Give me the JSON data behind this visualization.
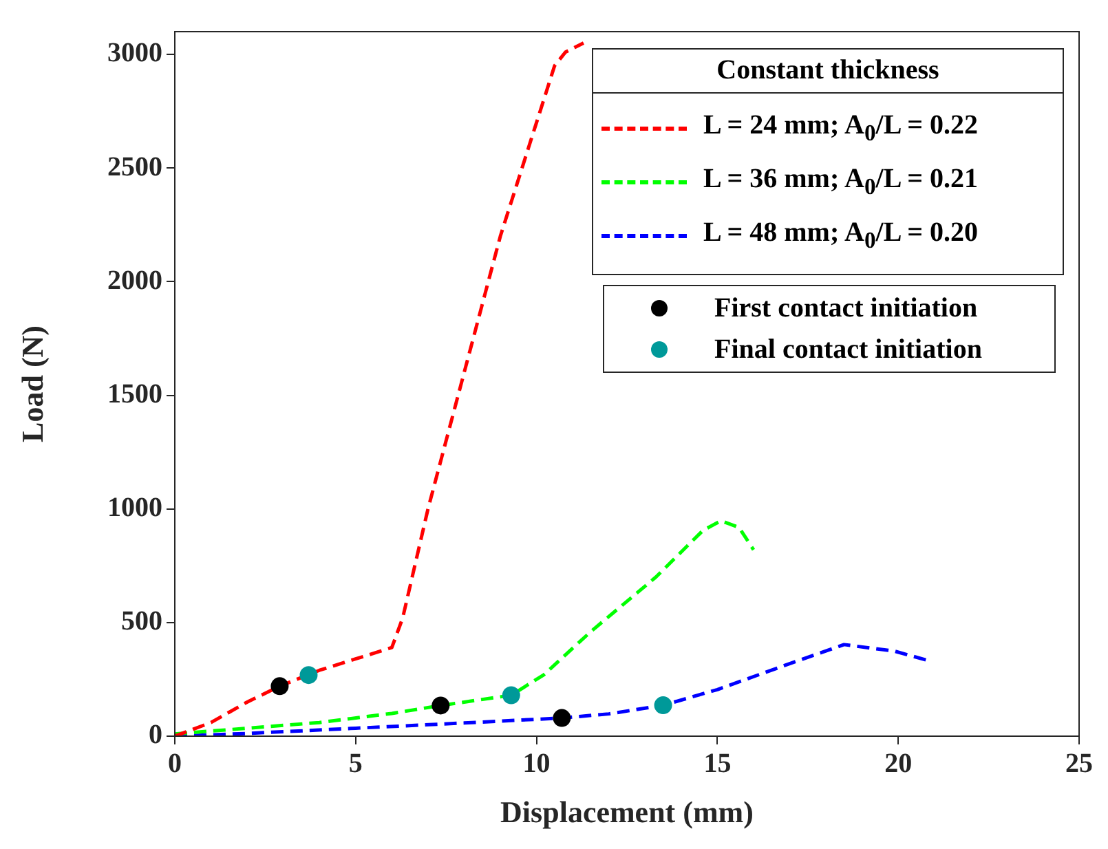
{
  "chart_data": {
    "type": "line",
    "xlabel": "Displacement (mm)",
    "ylabel": "Load (N)",
    "legend_title": "Constant thickness",
    "legend": "top right",
    "grid": false,
    "line_style": "dashed",
    "xlim": [
      0,
      25
    ],
    "xticks": [
      0,
      5,
      10,
      15,
      20,
      25
    ],
    "ylim": [
      0,
      3100
    ],
    "yticks": [
      0,
      500,
      1000,
      1500,
      2000,
      2500,
      3000
    ],
    "series": [
      {
        "name": "L = 24 mm; A$_{0}$/L = 0.22",
        "color": "#ff0000",
        "x": [
          0,
          1,
          2,
          2.9,
          4,
          5,
          6,
          6.3,
          7,
          8,
          9,
          10,
          10.5,
          10.8,
          11.3
        ],
        "values": [
          0,
          60,
          150,
          220,
          290,
          340,
          390,
          520,
          1000,
          1600,
          2200,
          2700,
          2950,
          3010,
          3050
        ]
      },
      {
        "name": "L = 36 mm; A$_{0}$/L = 0.21",
        "color": "#00ff00",
        "x": [
          0,
          2,
          4,
          6,
          7.35,
          9.3,
          10.2,
          11.5,
          13.3,
          14.6,
          15.1,
          15.6,
          16
        ],
        "values": [
          10,
          35,
          60,
          100,
          135,
          180,
          270,
          460,
          700,
          905,
          948,
          918,
          820
        ]
      },
      {
        "name": "L = 48 mm; A$_{0}$/L = 0.20",
        "color": "#0000ff",
        "x": [
          0,
          2,
          5,
          8,
          10.7,
          12,
          13.5,
          15,
          16.75,
          18.5,
          19.9,
          20.8
        ],
        "values": [
          0,
          12,
          35,
          58,
          80,
          98,
          136,
          205,
          305,
          403,
          374,
          334
        ]
      },
      {
        "name": "First contact initiation",
        "type": "scatter",
        "marker": "circle",
        "color": "#000000",
        "x": [
          2.9,
          7.35,
          10.7
        ],
        "values": [
          220,
          135,
          80
        ]
      },
      {
        "name": "Final contact initiation",
        "type": "scatter",
        "marker": "circle",
        "color": "#009999",
        "x": [
          3.7,
          9.3,
          13.5
        ],
        "values": [
          269,
          180,
          136
        ]
      }
    ]
  }
}
